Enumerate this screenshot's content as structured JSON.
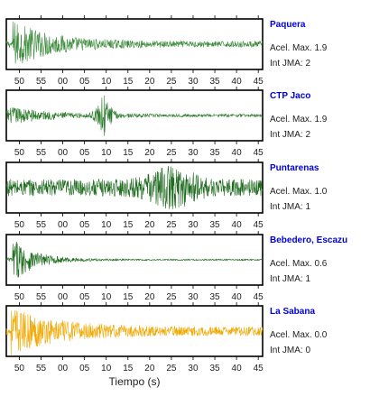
{
  "chart_data": {
    "type": "line",
    "xlabel": "Tiempo (s)",
    "x_ticks": [
      "50",
      "55",
      "00",
      "05",
      "10",
      "15",
      "20",
      "25",
      "30",
      "35",
      "40",
      "45"
    ],
    "xlim": [
      47,
      106
    ],
    "x_tick_values": [
      50,
      55,
      60,
      65,
      70,
      75,
      80,
      85,
      90,
      95,
      100,
      105
    ],
    "ylim": [
      -1,
      1
    ],
    "series": [
      {
        "name": "Paquera",
        "color": "#3a8a3a",
        "accel_label": "Acel. Max. 1.9",
        "jma_label": "Int JMA: 2",
        "peak_time": 48.5,
        "profile": "decay"
      },
      {
        "name": "CTP Jaco",
        "color": "#2e7d2e",
        "accel_label": "Acel. Max. 1.9",
        "jma_label": "Int JMA: 2",
        "peak_time": 69.5,
        "profile": "double"
      },
      {
        "name": "Puntarenas",
        "color": "#1f6b1f",
        "accel_label": "Acel. Max. 1.0",
        "jma_label": "Int JMA: 1",
        "peak_time": 85.0,
        "profile": "sustained"
      },
      {
        "name": "Bebedero, Escazu",
        "color": "#1a6a1a",
        "accel_label": "Acel. Max. 0.6",
        "jma_label": "Int JMA: 1",
        "peak_time": 48.5,
        "profile": "fastdecay"
      },
      {
        "name": "La Sabana",
        "color": "#f0a800",
        "accel_label": "Acel. Max. 0.0",
        "jma_label": "Int JMA: 0",
        "peak_time": 48.0,
        "profile": "decay_noise"
      }
    ]
  }
}
